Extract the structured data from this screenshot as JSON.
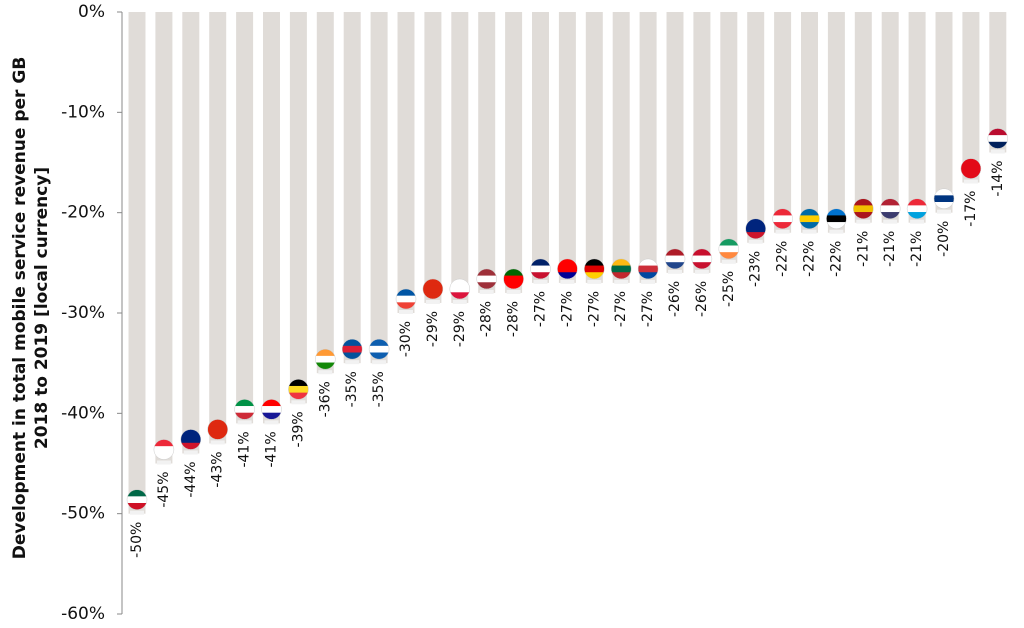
{
  "chart_data": {
    "type": "bar",
    "y_label": [
      "Development in total mobile service revenue per GB",
      "2018 to 2019 [local currency]"
    ],
    "categories": [
      null,
      null,
      null,
      null,
      null,
      null,
      null,
      null,
      null,
      null,
      null,
      null,
      null,
      null,
      null,
      null,
      null,
      null,
      null,
      null,
      null,
      null,
      null,
      null,
      null,
      null,
      null,
      null,
      null,
      null,
      null,
      null,
      null
    ],
    "values": [
      -50,
      -45,
      -44,
      -43,
      -41,
      -41,
      -39,
      -36,
      -35,
      -35,
      -30,
      -29,
      -29,
      -28,
      -28,
      -27,
      -27,
      -27,
      -27,
      -27,
      -26,
      -26,
      -25,
      -23,
      -22,
      -22,
      -22,
      -21,
      -21,
      -21,
      -20,
      -17,
      -14
    ],
    "value_labels": [
      "-50%",
      "-45%",
      "-44%",
      "-43%",
      "-41%",
      "-41%",
      "-39%",
      "-36%",
      "-35%",
      "-35%",
      "-30%",
      "-29%",
      "-29%",
      "-28%",
      "-28%",
      "-27%",
      "-27%",
      "-27%",
      "-27%",
      "-27%",
      "-26%",
      "-26%",
      "-25%",
      "-23%",
      "-22%",
      "-22%",
      "-22%",
      "-21%",
      "-21%",
      "-21%",
      "-20%",
      "-17%",
      "-14%"
    ],
    "color": "#e0dcd8",
    "ylim": [
      -60,
      0
    ],
    "yticks": [
      {
        "value": -60,
        "label": "-60%"
      },
      {
        "value": -50,
        "label": "-50%"
      },
      {
        "value": -40,
        "label": "-40%"
      },
      {
        "value": -30,
        "label": "-30%"
      },
      {
        "value": -20,
        "label": "-20%"
      },
      {
        "value": -10,
        "label": "-10%"
      },
      {
        "value": 0,
        "label": "0%"
      }
    ],
    "grid": false
  }
}
